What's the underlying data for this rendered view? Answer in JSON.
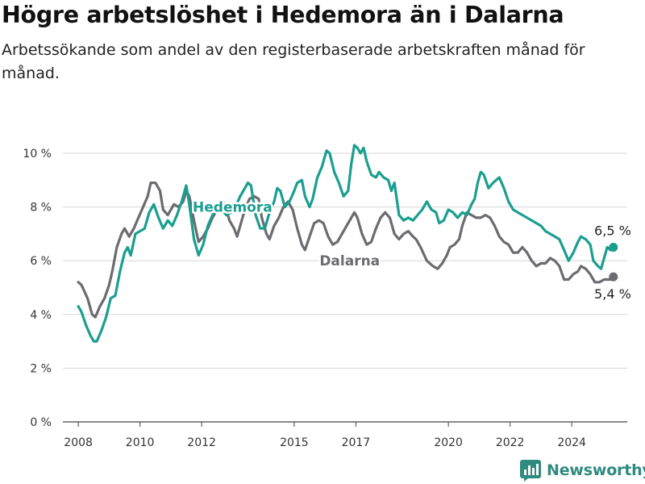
{
  "title": "Högre arbetslöshet i Hedemora än i Dalarna",
  "subtitle": "Arbetssökande som andel av den registerbaserade arbetskraften månad för månad.",
  "brand": {
    "name": "Newsworthy",
    "icon": "bar-chart-logo-icon",
    "color": "#2f8a7f"
  },
  "chart_data": {
    "type": "line",
    "title": "Högre arbetslöshet i Hedemora än i Dalarna",
    "subtitle": "Arbetssökande som andel av den registerbaserade arbetskraften månad för månad.",
    "xlabel": "",
    "ylabel": "",
    "xlim": [
      2007.5,
      2025.8
    ],
    "ylim": [
      0,
      10
    ],
    "grid": "horizontal",
    "y_ticks": [
      {
        "value": 0,
        "label": "0 %"
      },
      {
        "value": 2,
        "label": "2 %"
      },
      {
        "value": 4,
        "label": "4 %"
      },
      {
        "value": 6,
        "label": "6 %"
      },
      {
        "value": 8,
        "label": "8 %"
      },
      {
        "value": 10,
        "label": "10 %"
      }
    ],
    "x_ticks": [
      {
        "value": 2008,
        "label": "2008"
      },
      {
        "value": 2010,
        "label": "2010"
      },
      {
        "value": 2012,
        "label": "2012"
      },
      {
        "value": 2015,
        "label": "2015"
      },
      {
        "value": 2017,
        "label": "2017"
      },
      {
        "value": 2020,
        "label": "2020"
      },
      {
        "value": 2022,
        "label": "2022"
      },
      {
        "value": 2024,
        "label": "2024"
      }
    ],
    "series": [
      {
        "name": "Dalarna",
        "color": "#6b6b70",
        "end_label": "5,4 %",
        "label_at": [
          2016.8,
          6.0
        ],
        "points": [
          [
            2008.0,
            5.2
          ],
          [
            2008.1,
            5.1
          ],
          [
            2008.3,
            4.6
          ],
          [
            2008.45,
            4.0
          ],
          [
            2008.55,
            3.9
          ],
          [
            2008.7,
            4.3
          ],
          [
            2008.85,
            4.6
          ],
          [
            2009.0,
            5.1
          ],
          [
            2009.1,
            5.6
          ],
          [
            2009.25,
            6.5
          ],
          [
            2009.4,
            7.0
          ],
          [
            2009.5,
            7.2
          ],
          [
            2009.65,
            6.9
          ],
          [
            2009.8,
            7.2
          ],
          [
            2009.95,
            7.6
          ],
          [
            2010.1,
            8.0
          ],
          [
            2010.25,
            8.4
          ],
          [
            2010.35,
            8.9
          ],
          [
            2010.5,
            8.9
          ],
          [
            2010.65,
            8.6
          ],
          [
            2010.75,
            7.9
          ],
          [
            2010.9,
            7.7
          ],
          [
            2011.0,
            7.9
          ],
          [
            2011.1,
            8.1
          ],
          [
            2011.25,
            8.0
          ],
          [
            2011.4,
            8.2
          ],
          [
            2011.5,
            8.6
          ],
          [
            2011.6,
            8.4
          ],
          [
            2011.75,
            7.5
          ],
          [
            2011.9,
            6.7
          ],
          [
            2012.05,
            6.9
          ],
          [
            2012.2,
            7.2
          ],
          [
            2012.35,
            7.6
          ],
          [
            2012.5,
            7.9
          ],
          [
            2012.65,
            8.2
          ],
          [
            2012.75,
            8.1
          ],
          [
            2012.9,
            7.5
          ],
          [
            2013.05,
            7.2
          ],
          [
            2013.15,
            6.9
          ],
          [
            2013.25,
            7.3
          ],
          [
            2013.4,
            7.9
          ],
          [
            2013.55,
            8.3
          ],
          [
            2013.7,
            8.4
          ],
          [
            2013.85,
            8.3
          ],
          [
            2013.95,
            7.6
          ],
          [
            2014.1,
            7.0
          ],
          [
            2014.2,
            6.8
          ],
          [
            2014.35,
            7.3
          ],
          [
            2014.5,
            7.6
          ],
          [
            2014.65,
            8.0
          ],
          [
            2014.8,
            8.2
          ],
          [
            2014.95,
            7.9
          ],
          [
            2015.1,
            7.2
          ],
          [
            2015.25,
            6.6
          ],
          [
            2015.35,
            6.4
          ],
          [
            2015.5,
            6.9
          ],
          [
            2015.65,
            7.4
          ],
          [
            2015.8,
            7.5
          ],
          [
            2015.95,
            7.4
          ],
          [
            2016.1,
            6.9
          ],
          [
            2016.25,
            6.6
          ],
          [
            2016.4,
            6.7
          ],
          [
            2016.55,
            7.0
          ],
          [
            2016.7,
            7.3
          ],
          [
            2016.85,
            7.6
          ],
          [
            2016.95,
            7.8
          ],
          [
            2017.05,
            7.6
          ],
          [
            2017.2,
            7.0
          ],
          [
            2017.35,
            6.6
          ],
          [
            2017.5,
            6.7
          ],
          [
            2017.65,
            7.2
          ],
          [
            2017.8,
            7.6
          ],
          [
            2017.95,
            7.8
          ],
          [
            2018.1,
            7.6
          ],
          [
            2018.25,
            7.0
          ],
          [
            2018.4,
            6.8
          ],
          [
            2018.55,
            7.0
          ],
          [
            2018.7,
            7.1
          ],
          [
            2018.85,
            6.9
          ],
          [
            2018.95,
            6.8
          ],
          [
            2019.1,
            6.5
          ],
          [
            2019.3,
            6.0
          ],
          [
            2019.5,
            5.8
          ],
          [
            2019.65,
            5.7
          ],
          [
            2019.8,
            5.9
          ],
          [
            2019.95,
            6.2
          ],
          [
            2020.05,
            6.5
          ],
          [
            2020.2,
            6.6
          ],
          [
            2020.35,
            6.8
          ],
          [
            2020.45,
            7.3
          ],
          [
            2020.6,
            7.8
          ],
          [
            2020.75,
            7.7
          ],
          [
            2020.9,
            7.6
          ],
          [
            2021.05,
            7.6
          ],
          [
            2021.2,
            7.7
          ],
          [
            2021.35,
            7.6
          ],
          [
            2021.5,
            7.3
          ],
          [
            2021.65,
            6.9
          ],
          [
            2021.8,
            6.7
          ],
          [
            2021.95,
            6.6
          ],
          [
            2022.1,
            6.3
          ],
          [
            2022.25,
            6.3
          ],
          [
            2022.4,
            6.5
          ],
          [
            2022.55,
            6.3
          ],
          [
            2022.7,
            6.0
          ],
          [
            2022.85,
            5.8
          ],
          [
            2023.0,
            5.9
          ],
          [
            2023.15,
            5.9
          ],
          [
            2023.3,
            6.1
          ],
          [
            2023.45,
            6.0
          ],
          [
            2023.6,
            5.8
          ],
          [
            2023.75,
            5.3
          ],
          [
            2023.9,
            5.3
          ],
          [
            2024.05,
            5.5
          ],
          [
            2024.2,
            5.6
          ],
          [
            2024.3,
            5.8
          ],
          [
            2024.45,
            5.7
          ],
          [
            2024.6,
            5.5
          ],
          [
            2024.75,
            5.2
          ],
          [
            2024.9,
            5.2
          ],
          [
            2025.05,
            5.3
          ],
          [
            2025.15,
            5.3
          ],
          [
            2025.25,
            5.3
          ],
          [
            2025.35,
            5.4
          ]
        ]
      },
      {
        "name": "Hedemora",
        "color": "#1a9e8f",
        "end_label": "6,5 %",
        "label_at": [
          2013.0,
          8.0
        ],
        "points": [
          [
            2008.0,
            4.3
          ],
          [
            2008.1,
            4.1
          ],
          [
            2008.25,
            3.6
          ],
          [
            2008.4,
            3.2
          ],
          [
            2008.5,
            3.0
          ],
          [
            2008.6,
            3.0
          ],
          [
            2008.75,
            3.4
          ],
          [
            2008.9,
            3.9
          ],
          [
            2009.05,
            4.6
          ],
          [
            2009.2,
            4.7
          ],
          [
            2009.35,
            5.6
          ],
          [
            2009.5,
            6.3
          ],
          [
            2009.6,
            6.5
          ],
          [
            2009.7,
            6.2
          ],
          [
            2009.85,
            7.0
          ],
          [
            2010.0,
            7.1
          ],
          [
            2010.15,
            7.2
          ],
          [
            2010.3,
            7.8
          ],
          [
            2010.45,
            8.1
          ],
          [
            2010.6,
            7.6
          ],
          [
            2010.75,
            7.2
          ],
          [
            2010.9,
            7.5
          ],
          [
            2011.05,
            7.3
          ],
          [
            2011.2,
            7.7
          ],
          [
            2011.35,
            8.2
          ],
          [
            2011.5,
            8.8
          ],
          [
            2011.6,
            8.1
          ],
          [
            2011.75,
            6.8
          ],
          [
            2011.9,
            6.2
          ],
          [
            2012.05,
            6.6
          ],
          [
            2012.2,
            7.3
          ],
          [
            2012.35,
            7.7
          ],
          [
            2012.5,
            8.0
          ],
          [
            2012.65,
            7.9
          ],
          [
            2012.8,
            7.7
          ],
          [
            2012.95,
            7.8
          ],
          [
            2013.1,
            8.0
          ],
          [
            2013.25,
            8.4
          ],
          [
            2013.4,
            8.7
          ],
          [
            2013.5,
            8.9
          ],
          [
            2013.6,
            8.8
          ],
          [
            2013.75,
            7.7
          ],
          [
            2013.9,
            7.2
          ],
          [
            2014.05,
            7.2
          ],
          [
            2014.2,
            7.8
          ],
          [
            2014.35,
            8.2
          ],
          [
            2014.45,
            8.7
          ],
          [
            2014.55,
            8.6
          ],
          [
            2014.7,
            8.0
          ],
          [
            2014.85,
            8.2
          ],
          [
            2015.0,
            8.6
          ],
          [
            2015.1,
            8.9
          ],
          [
            2015.25,
            9.0
          ],
          [
            2015.35,
            8.4
          ],
          [
            2015.5,
            8.0
          ],
          [
            2015.6,
            8.3
          ],
          [
            2015.75,
            9.1
          ],
          [
            2015.9,
            9.5
          ],
          [
            2016.05,
            10.1
          ],
          [
            2016.15,
            10.0
          ],
          [
            2016.3,
            9.3
          ],
          [
            2016.45,
            8.9
          ],
          [
            2016.6,
            8.4
          ],
          [
            2016.75,
            8.6
          ],
          [
            2016.85,
            9.6
          ],
          [
            2016.95,
            10.3
          ],
          [
            2017.05,
            10.2
          ],
          [
            2017.15,
            10.0
          ],
          [
            2017.25,
            10.2
          ],
          [
            2017.35,
            9.7
          ],
          [
            2017.5,
            9.2
          ],
          [
            2017.65,
            9.1
          ],
          [
            2017.75,
            9.3
          ],
          [
            2017.9,
            9.1
          ],
          [
            2018.05,
            9.0
          ],
          [
            2018.15,
            8.6
          ],
          [
            2018.25,
            8.9
          ],
          [
            2018.4,
            7.7
          ],
          [
            2018.55,
            7.5
          ],
          [
            2018.7,
            7.6
          ],
          [
            2018.85,
            7.5
          ],
          [
            2019.0,
            7.7
          ],
          [
            2019.15,
            7.9
          ],
          [
            2019.3,
            8.2
          ],
          [
            2019.45,
            7.9
          ],
          [
            2019.6,
            7.8
          ],
          [
            2019.7,
            7.4
          ],
          [
            2019.85,
            7.5
          ],
          [
            2020.0,
            7.9
          ],
          [
            2020.15,
            7.8
          ],
          [
            2020.3,
            7.6
          ],
          [
            2020.45,
            7.8
          ],
          [
            2020.6,
            7.7
          ],
          [
            2020.75,
            8.1
          ],
          [
            2020.85,
            8.3
          ],
          [
            2020.95,
            8.9
          ],
          [
            2021.05,
            9.3
          ],
          [
            2021.15,
            9.2
          ],
          [
            2021.3,
            8.7
          ],
          [
            2021.45,
            8.9
          ],
          [
            2021.55,
            9.0
          ],
          [
            2021.65,
            9.1
          ],
          [
            2021.8,
            8.7
          ],
          [
            2021.95,
            8.2
          ],
          [
            2022.1,
            7.9
          ],
          [
            2022.25,
            7.8
          ],
          [
            2022.4,
            7.7
          ],
          [
            2022.55,
            7.6
          ],
          [
            2022.7,
            7.5
          ],
          [
            2022.85,
            7.4
          ],
          [
            2023.0,
            7.3
          ],
          [
            2023.15,
            7.1
          ],
          [
            2023.3,
            7.0
          ],
          [
            2023.45,
            6.9
          ],
          [
            2023.6,
            6.8
          ],
          [
            2023.75,
            6.4
          ],
          [
            2023.9,
            6.0
          ],
          [
            2024.05,
            6.3
          ],
          [
            2024.2,
            6.7
          ],
          [
            2024.3,
            6.9
          ],
          [
            2024.45,
            6.8
          ],
          [
            2024.6,
            6.6
          ],
          [
            2024.7,
            6.0
          ],
          [
            2024.85,
            5.8
          ],
          [
            2024.95,
            5.7
          ],
          [
            2025.05,
            6.1
          ],
          [
            2025.15,
            6.5
          ],
          [
            2025.25,
            6.4
          ],
          [
            2025.35,
            6.5
          ]
        ]
      }
    ]
  }
}
